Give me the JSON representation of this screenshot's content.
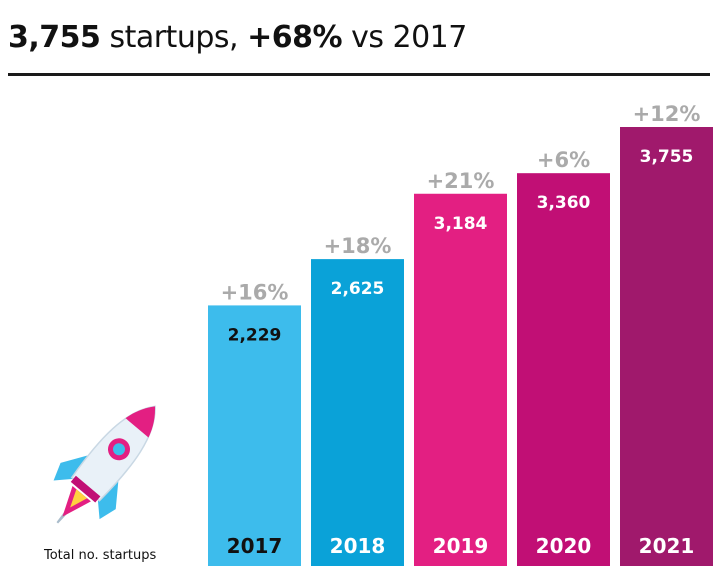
{
  "title": {
    "count": "3,755",
    "text1": " startups, ",
    "growth": "+68%",
    "text2": " vs 2017"
  },
  "footnote": "Total no. startups",
  "rocket_icon": "rocket-icon",
  "chart_data": {
    "type": "bar",
    "categories": [
      "2017",
      "2018",
      "2019",
      "2020",
      "2021"
    ],
    "values": [
      2229,
      2625,
      3184,
      3360,
      3755
    ],
    "value_labels": [
      "2,229",
      "2,625",
      "3,184",
      "3,360",
      "3,755"
    ],
    "growth_labels": [
      "+16%",
      "+18%",
      "+21%",
      "+6%",
      "+12%"
    ],
    "colors": [
      "#3dbcec",
      "#0aa2d8",
      "#e31f82",
      "#c10f75",
      "#a0196c"
    ],
    "label_colors": [
      "#111111",
      "#ffffff",
      "#ffffff",
      "#ffffff",
      "#ffffff"
    ],
    "growth_label_color": "#aaaaaa",
    "xlabel": "",
    "ylabel": ""
  }
}
